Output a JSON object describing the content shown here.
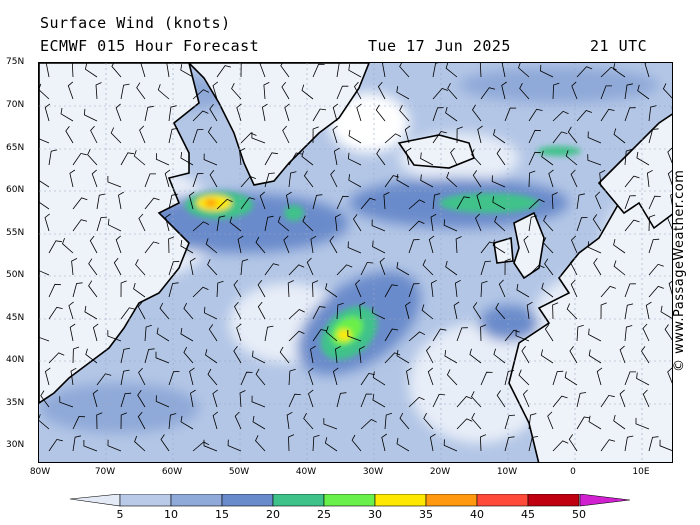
{
  "header": {
    "title": "Surface Wind (knots)",
    "model_line": "ECMWF 015 Hour Forecast",
    "date": "Tue 17 Jun 2025",
    "time": "21 UTC"
  },
  "map": {
    "lat_labels": [
      "75N",
      "70N",
      "65N",
      "60N",
      "55N",
      "50N",
      "45N",
      "40N",
      "35N",
      "30N"
    ],
    "lon_labels": [
      "80W",
      "70W",
      "60W",
      "50W",
      "40W",
      "30W",
      "20W",
      "10W",
      "0",
      "10E"
    ],
    "extent": {
      "lon_min": -80,
      "lon_max": 15,
      "lat_min": 28,
      "lat_max": 75
    }
  },
  "colorbar": {
    "labels": [
      "5",
      "10",
      "15",
      "20",
      "25",
      "30",
      "35",
      "40",
      "45",
      "50"
    ],
    "colors": [
      "#e4ebf6",
      "#b8cae8",
      "#8fa9d8",
      "#6a8bcb",
      "#3fc28a",
      "#6af04a",
      "#ffe800",
      "#ff9a10",
      "#ff4a3a",
      "#c00010",
      "#d020d0"
    ]
  },
  "copyright": "© www.PassageWeather.com"
}
